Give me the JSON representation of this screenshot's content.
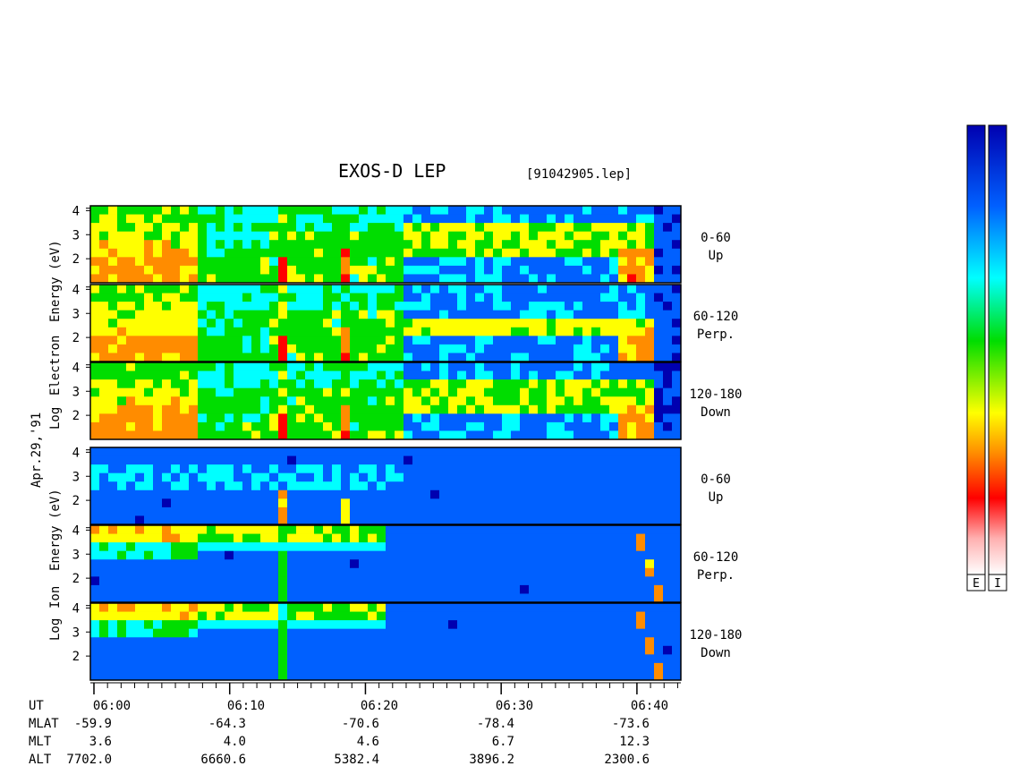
{
  "title": "EXOS-D LEP",
  "filename": "[91042905.lep]",
  "date_label": "Apr.29,'91",
  "electron_ylabel": [
    "Log",
    "Electron",
    "Energy",
    "(eV)"
  ],
  "ion_ylabel": [
    "Log",
    "Ion",
    "Energy",
    "(eV)"
  ],
  "chart_data": {
    "type": "heatmap",
    "x_ticks": [
      "06:00",
      "06:10",
      "06:20",
      "06:30",
      "06:40"
    ],
    "y_ticks": [
      "2",
      "3",
      "4"
    ],
    "ylim": [
      1,
      4.2
    ],
    "colorbar": {
      "labels": [
        "E",
        "I"
      ],
      "colors_bottom_to_top": [
        "#ffffff",
        "#ff0000",
        "#ff8c00",
        "#ffff00",
        "#00dd00",
        "#00ffff",
        "#0060ff",
        "#0000b0"
      ]
    },
    "panels": [
      {
        "species": "Electron",
        "pitch_angle": "0-60",
        "direction": "Up"
      },
      {
        "species": "Electron",
        "pitch_angle": "60-120",
        "direction": "Perp."
      },
      {
        "species": "Electron",
        "pitch_angle": "120-180",
        "direction": "Down"
      },
      {
        "species": "Ion",
        "pitch_angle": "0-60",
        "direction": "Up"
      },
      {
        "species": "Ion",
        "pitch_angle": "60-120",
        "direction": "Perp."
      },
      {
        "species": "Ion",
        "pitch_angle": "120-180",
        "direction": "Down"
      }
    ],
    "ephemeris": {
      "rows": [
        {
          "label": "UT",
          "values": [
            "06:00",
            "06:10",
            "06:20",
            "06:30",
            "06:40"
          ]
        },
        {
          "label": "MLAT",
          "values": [
            "-59.9",
            "-64.3",
            "-70.6",
            "-78.4",
            "-73.6"
          ]
        },
        {
          "label": "MLT",
          "values": [
            "3.6",
            "4.0",
            "4.6",
            "6.7",
            "12.3"
          ]
        },
        {
          "label": "ALT",
          "values": [
            "7702.0",
            "6660.6",
            "5382.4",
            "3896.2",
            "2300.6"
          ]
        }
      ]
    }
  }
}
